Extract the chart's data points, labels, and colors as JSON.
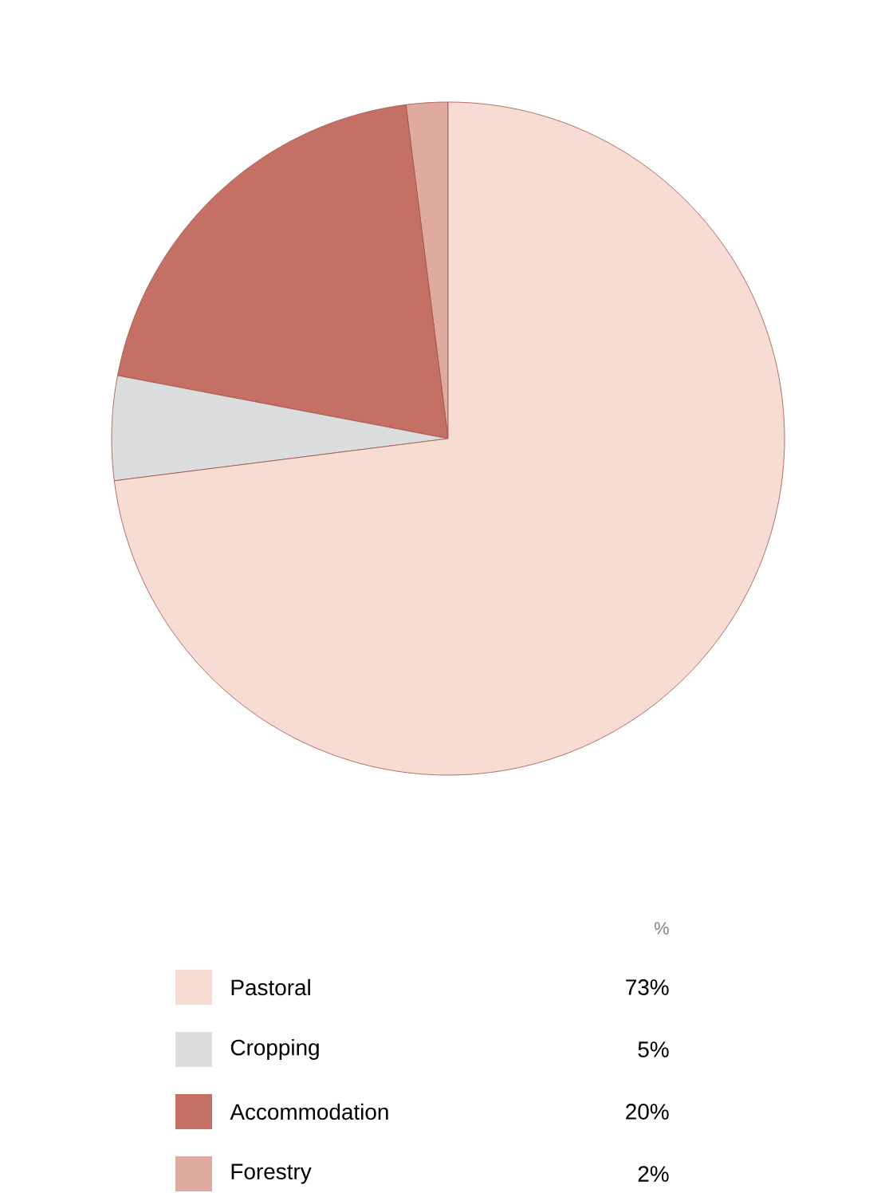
{
  "chart_data": {
    "type": "pie",
    "legend_title": "%",
    "categories": [
      "Pastoral",
      "Cropping",
      "Accommodation",
      "Forestry"
    ],
    "values": [
      73,
      5,
      20,
      2
    ],
    "value_labels": [
      "73%",
      "5%",
      "20%",
      "2%"
    ],
    "colors": [
      "#f7dcd4",
      "#dcdddf",
      "#c47065",
      "#dfaba0"
    ],
    "legend": "bottom"
  }
}
